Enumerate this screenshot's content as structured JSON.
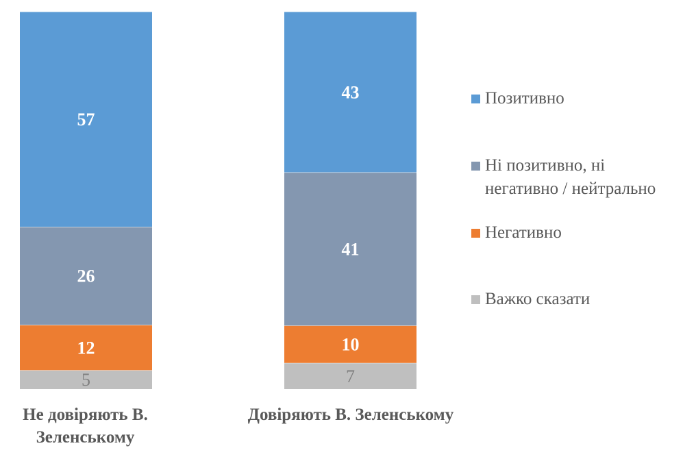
{
  "chart_data": {
    "type": "bar",
    "stacked": true,
    "categories": [
      "Не довіряють В.\nЗеленському",
      "Довіряють В. Зеленському"
    ],
    "series": [
      {
        "name": "Позитивно",
        "values": [
          57,
          43
        ],
        "color": "#5b9bd5"
      },
      {
        "name": "Ні позитивно, ні\nнегативно / нейтрально",
        "values": [
          26,
          41
        ],
        "color": "#8497b0"
      },
      {
        "name": "Негативно",
        "values": [
          12,
          10
        ],
        "color": "#ed7d31"
      },
      {
        "name": "Важко сказати",
        "values": [
          5,
          7
        ],
        "color": "#bfbfbf"
      }
    ],
    "data_labels": true,
    "legend_position": "right",
    "grid": false,
    "title": "",
    "xlabel": "",
    "ylabel": ""
  }
}
